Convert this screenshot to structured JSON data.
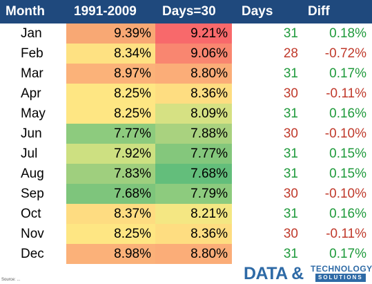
{
  "header": {
    "month": "Month",
    "c1": "1991-2009",
    "c2": "Days=30",
    "days": "Days",
    "diff": "Diff"
  },
  "colors": {
    "header_bg": "#1f497d",
    "positive": "#1e9a3b",
    "negative": "#c0392b"
  },
  "rows": [
    {
      "month": "Jan",
      "c1": "9.39%",
      "c2": "9.21%",
      "days": "31",
      "diff": "0.18%",
      "c1_color": "#f8a874",
      "c2_color": "#f8696b",
      "days_color": "#1e9a3b",
      "diff_color": "#1e9a3b"
    },
    {
      "month": "Feb",
      "c1": "8.34%",
      "c2": "9.06%",
      "days": "28",
      "diff": "-0.72%",
      "c1_color": "#fee182",
      "c2_color": "#f98670",
      "days_color": "#c0392b",
      "diff_color": "#c0392b"
    },
    {
      "month": "Mar",
      "c1": "8.97%",
      "c2": "8.80%",
      "days": "31",
      "diff": "0.17%",
      "c1_color": "#fbb279",
      "c2_color": "#fbad78",
      "days_color": "#1e9a3b",
      "diff_color": "#1e9a3b"
    },
    {
      "month": "Apr",
      "c1": "8.25%",
      "c2": "8.36%",
      "days": "30",
      "diff": "-0.11%",
      "c1_color": "#fee683",
      "c2_color": "#fedd81",
      "days_color": "#c0392b",
      "diff_color": "#c0392b"
    },
    {
      "month": "May",
      "c1": "8.25%",
      "c2": "8.09%",
      "days": "31",
      "diff": "0.16%",
      "c1_color": "#fee683",
      "c2_color": "#d6e183",
      "days_color": "#1e9a3b",
      "diff_color": "#1e9a3b"
    },
    {
      "month": "Jun",
      "c1": "7.77%",
      "c2": "7.88%",
      "days": "30",
      "diff": "-0.10%",
      "c1_color": "#8dcb7e",
      "c2_color": "#a9d27f",
      "days_color": "#c0392b",
      "diff_color": "#c0392b"
    },
    {
      "month": "Jul",
      "c1": "7.92%",
      "c2": "7.77%",
      "days": "31",
      "diff": "0.15%",
      "c1_color": "#cde081",
      "c2_color": "#84c77c",
      "days_color": "#1e9a3b",
      "diff_color": "#1e9a3b"
    },
    {
      "month": "Aug",
      "c1": "7.83%",
      "c2": "7.68%",
      "days": "31",
      "diff": "0.15%",
      "c1_color": "#9fcf7e",
      "c2_color": "#63be7b",
      "days_color": "#1e9a3b",
      "diff_color": "#1e9a3b"
    },
    {
      "month": "Sep",
      "c1": "7.68%",
      "c2": "7.79%",
      "days": "30",
      "diff": "-0.10%",
      "c1_color": "#7ec57c",
      "c2_color": "#8dcb7e",
      "days_color": "#c0392b",
      "diff_color": "#c0392b"
    },
    {
      "month": "Oct",
      "c1": "8.37%",
      "c2": "8.21%",
      "days": "31",
      "diff": "0.16%",
      "c1_color": "#fedc81",
      "c2_color": "#f4e783",
      "days_color": "#1e9a3b",
      "diff_color": "#1e9a3b"
    },
    {
      "month": "Nov",
      "c1": "8.25%",
      "c2": "8.36%",
      "days": "30",
      "diff": "-0.11%",
      "c1_color": "#fee683",
      "c2_color": "#fedd81",
      "days_color": "#c0392b",
      "diff_color": "#c0392b"
    },
    {
      "month": "Dec",
      "c1": "8.98%",
      "c2": "8.80%",
      "days": "31",
      "diff": "0.17%",
      "c1_color": "#fbb179",
      "c2_color": "#fbad78",
      "days_color": "#1e9a3b",
      "diff_color": "#1e9a3b"
    }
  ],
  "footer": {
    "source": "Source: ...",
    "logo_main": "DATA &",
    "logo_tech": "TECHNOLOGY",
    "logo_sub": "SOLUTIONS"
  }
}
